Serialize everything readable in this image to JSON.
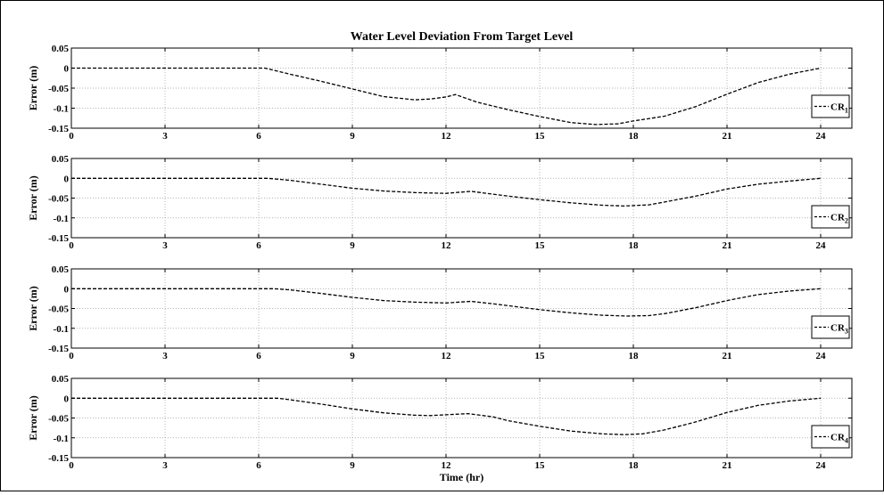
{
  "chart_data": [
    {
      "type": "line",
      "title": "Water Level Deviation From Target Level",
      "ylabel": "Error (m)",
      "xlabel": "",
      "xlim": [
        0,
        25
      ],
      "ylim": [
        -0.15,
        0.05
      ],
      "xticks": [
        "0",
        "3",
        "6",
        "9",
        "12",
        "15",
        "18",
        "21",
        "24"
      ],
      "yticks": [
        "0.05",
        "0",
        "-0.05",
        "-0.1",
        "-0.15"
      ],
      "grid": true,
      "legend_position": "right",
      "series": [
        {
          "name": "CR",
          "name_sub": "1",
          "x": [
            0,
            3,
            6.2,
            7,
            8,
            9,
            10,
            11,
            11.5,
            12,
            12.3,
            13,
            14,
            15,
            16,
            16.8,
            17.5,
            18,
            19,
            20,
            21,
            22,
            23,
            24
          ],
          "y": [
            0,
            0,
            0,
            -0.015,
            -0.033,
            -0.052,
            -0.071,
            -0.079,
            -0.077,
            -0.072,
            -0.066,
            -0.085,
            -0.104,
            -0.121,
            -0.136,
            -0.141,
            -0.139,
            -0.132,
            -0.12,
            -0.096,
            -0.065,
            -0.036,
            -0.015,
            0
          ]
        }
      ]
    },
    {
      "type": "line",
      "title": "",
      "ylabel": "Error (m)",
      "xlabel": "",
      "xlim": [
        0,
        25
      ],
      "ylim": [
        -0.15,
        0.05
      ],
      "xticks": [
        "0",
        "3",
        "6",
        "9",
        "12",
        "15",
        "18",
        "21",
        "24"
      ],
      "yticks": [
        "0.05",
        "0",
        "-0.05",
        "-0.1",
        "-0.15"
      ],
      "grid": true,
      "legend_position": "right",
      "series": [
        {
          "name": "CR",
          "name_sub": "2",
          "x": [
            0,
            3,
            6.3,
            7,
            8,
            9,
            10,
            11,
            12,
            12.8,
            13.5,
            14,
            15,
            16,
            17,
            17.7,
            18.5,
            19,
            20,
            21,
            22,
            23,
            24
          ],
          "y": [
            0,
            0,
            0,
            -0.005,
            -0.015,
            -0.025,
            -0.032,
            -0.036,
            -0.038,
            -0.033,
            -0.04,
            -0.045,
            -0.054,
            -0.062,
            -0.068,
            -0.07,
            -0.067,
            -0.06,
            -0.045,
            -0.027,
            -0.015,
            -0.007,
            0
          ]
        }
      ]
    },
    {
      "type": "line",
      "title": "",
      "ylabel": "Error (m)",
      "xlabel": "",
      "xlim": [
        0,
        25
      ],
      "ylim": [
        -0.15,
        0.05
      ],
      "xticks": [
        "0",
        "3",
        "6",
        "9",
        "12",
        "15",
        "18",
        "21",
        "24"
      ],
      "yticks": [
        "0.05",
        "0",
        "-0.05",
        "-0.1",
        "-0.15"
      ],
      "grid": true,
      "legend_position": "right",
      "series": [
        {
          "name": "CR",
          "name_sub": "3",
          "x": [
            0,
            3,
            6.5,
            7,
            8,
            9,
            10,
            11,
            12,
            12.8,
            13.5,
            14,
            15,
            16,
            17,
            17.8,
            18.5,
            19,
            20,
            21,
            22,
            23,
            24
          ],
          "y": [
            0,
            0,
            0,
            -0.003,
            -0.012,
            -0.022,
            -0.03,
            -0.034,
            -0.036,
            -0.032,
            -0.038,
            -0.043,
            -0.053,
            -0.061,
            -0.067,
            -0.069,
            -0.068,
            -0.063,
            -0.048,
            -0.03,
            -0.015,
            -0.006,
            0
          ]
        }
      ]
    },
    {
      "type": "line",
      "title": "",
      "ylabel": "Error (m)",
      "xlabel": "Time (hr)",
      "xlim": [
        0,
        25
      ],
      "ylim": [
        -0.15,
        0.05
      ],
      "xticks": [
        "0",
        "3",
        "6",
        "9",
        "12",
        "15",
        "18",
        "21",
        "24"
      ],
      "yticks": [
        "0.05",
        "0",
        "-0.05",
        "-0.1",
        "-0.15"
      ],
      "grid": true,
      "legend_position": "right",
      "series": [
        {
          "name": "CR",
          "name_sub": "4",
          "x": [
            0,
            3,
            6.6,
            7,
            8,
            9,
            10,
            11,
            11.5,
            12,
            12.7,
            13.5,
            14,
            15,
            16,
            17,
            17.7,
            18.3,
            19,
            20,
            21,
            22,
            23,
            24
          ],
          "y": [
            0,
            0,
            0,
            -0.004,
            -0.015,
            -0.027,
            -0.037,
            -0.043,
            -0.044,
            -0.042,
            -0.039,
            -0.047,
            -0.057,
            -0.071,
            -0.083,
            -0.09,
            -0.092,
            -0.09,
            -0.08,
            -0.06,
            -0.036,
            -0.018,
            -0.007,
            0
          ]
        }
      ]
    }
  ]
}
